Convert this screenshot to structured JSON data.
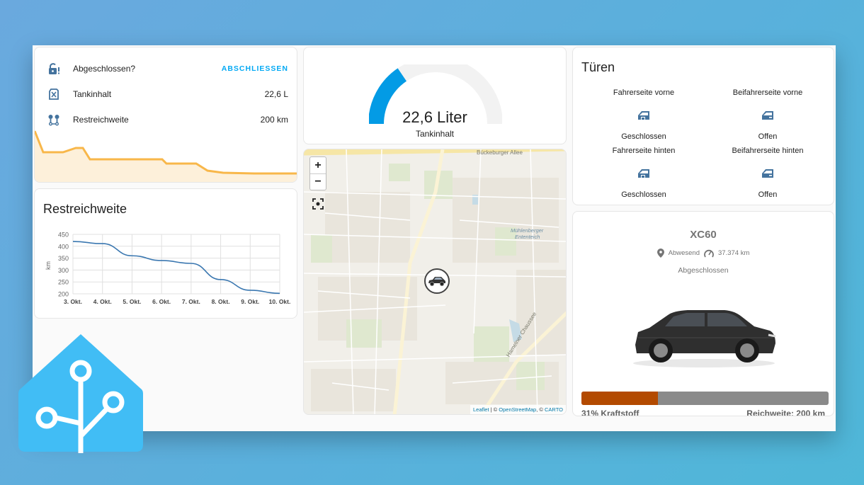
{
  "entities": {
    "rows": [
      {
        "icon": "lock-alert-icon",
        "name": "Abgeschlossen?",
        "action": "ABSCHLIESSEN"
      },
      {
        "icon": "fuel-icon",
        "name": "Tankinhalt",
        "state": "22,6 L"
      },
      {
        "icon": "map-marker-distance-icon",
        "name": "Restreichweite",
        "state": "200 km"
      }
    ]
  },
  "graph": {
    "title": "Restreichweite"
  },
  "chart_data": {
    "type": "line",
    "title": "Restreichweite",
    "xlabel": "",
    "ylabel": "km",
    "categories": [
      "3. Okt.",
      "4. Okt.",
      "5. Okt.",
      "6. Okt.",
      "7. Okt.",
      "8. Okt.",
      "9. Okt.",
      "10. Okt."
    ],
    "ylim": [
      200,
      450
    ],
    "yticks": [
      "450",
      "400",
      "350",
      "300",
      "250",
      "200"
    ],
    "series": [
      {
        "values": [
          420,
          411,
          360,
          340,
          328,
          260,
          215,
          202
        ],
        "color": "#3a77b0"
      }
    ],
    "grid": true
  },
  "gauge": {
    "value": "22,6 Liter",
    "label": "Tankinhalt",
    "fraction": 0.31,
    "color": "#039be5"
  },
  "map": {
    "zoom_in": "+",
    "zoom_out": "−",
    "place_label_1": "Mühlenberger",
    "place_label_2": "Ententeich",
    "road_label_1": "Bückeburger Allee",
    "road_label_2": "Hamelner Chaussee",
    "attribution_leaflet": "Leaflet",
    "attribution_sep": " | © ",
    "attribution_osm": "OpenStreetMap",
    "attribution_mid": ", © ",
    "attribution_carto": "CARTO"
  },
  "doors": {
    "title": "Türen",
    "items": [
      {
        "name": "Fahrerseite vorne",
        "state": "Geschlossen"
      },
      {
        "name": "Beifahrerseite vorne",
        "state": "Offen"
      },
      {
        "name": "Fahrerseite hinten",
        "state": "Geschlossen"
      },
      {
        "name": "Beifahrerseite hinten",
        "state": "Offen"
      }
    ]
  },
  "car": {
    "model": "XC60",
    "location": "Abwesend",
    "odometer": "37.374 km",
    "lock_state": "Abgeschlossen",
    "fuel_fraction": 0.31,
    "fuel_label": "31% Kraftstoff",
    "range_label": "Reichweite: 200 km",
    "fuel_color": "#b34a00"
  }
}
